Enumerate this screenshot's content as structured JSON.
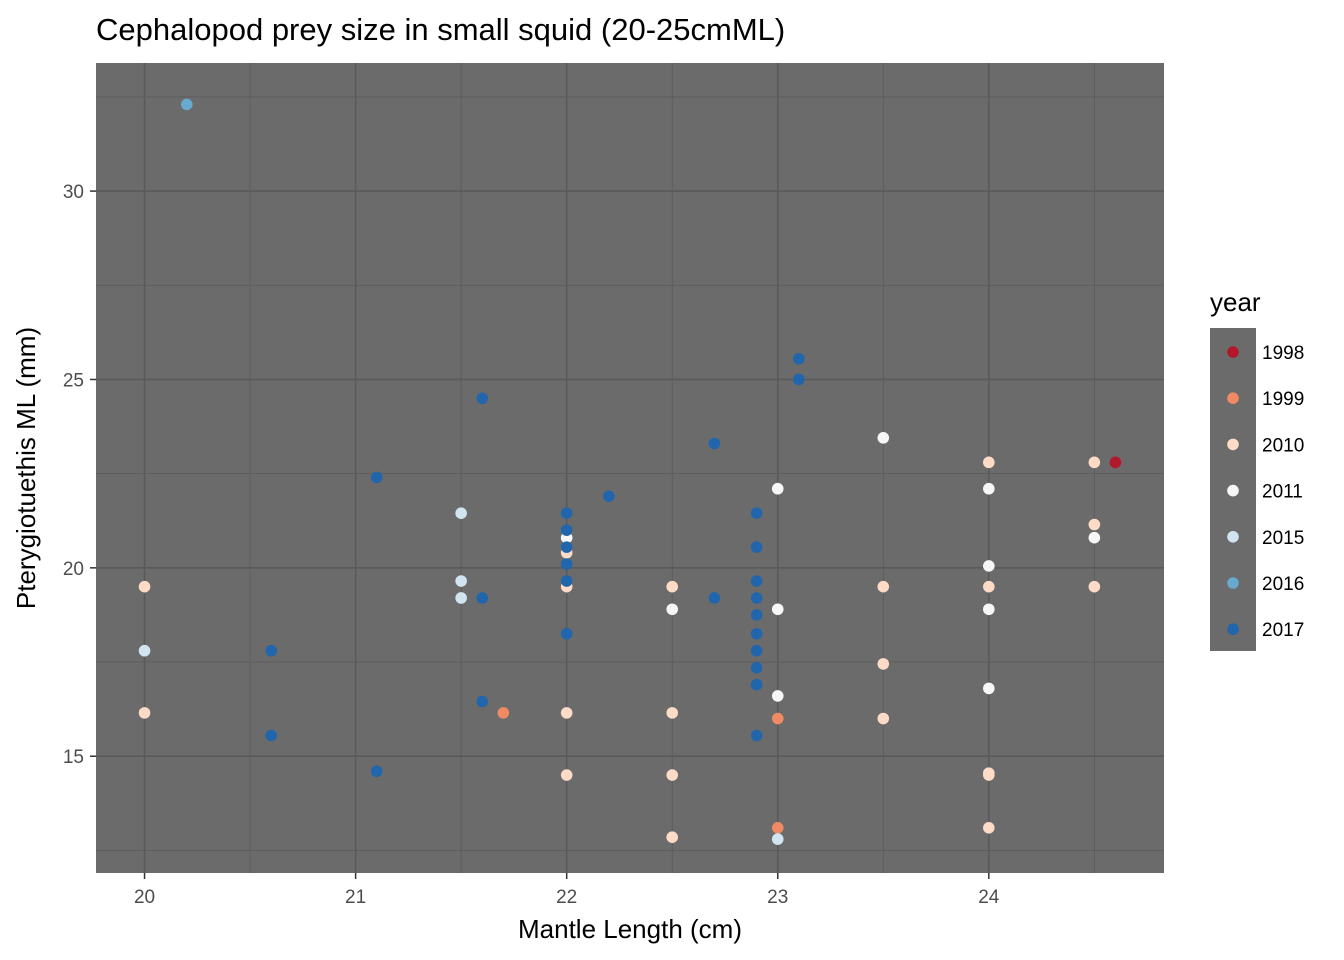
{
  "chart_data": {
    "type": "scatter",
    "title": "Cephalopod prey size in small squid (20-25cmML)",
    "xlabel": "Mantle Length (cm)",
    "ylabel": "Pterygiotuethis ML (mm)",
    "xlim": [
      19.77,
      24.83
    ],
    "ylim": [
      11.9,
      33.4
    ],
    "x_ticks": [
      20,
      21,
      22,
      23,
      24
    ],
    "y_ticks": [
      15,
      20,
      25,
      30
    ],
    "x_tick_labels": [
      "20",
      "21",
      "22",
      "23",
      "24"
    ],
    "y_tick_labels": [
      "15",
      "20",
      "25",
      "30"
    ],
    "grid": true,
    "panel_background": "#6b6b6b",
    "grid_color": "#5a5a5a",
    "legend": {
      "title": "year",
      "position": "right",
      "background": "#6b6b6b"
    },
    "series": [
      {
        "name": "1998",
        "color": "#b2182b",
        "points": [
          [
            24.6,
            22.8
          ]
        ]
      },
      {
        "name": "1999",
        "color": "#ef8a62",
        "points": [
          [
            21.7,
            16.15
          ],
          [
            23.0,
            16.0
          ],
          [
            23.0,
            13.1
          ]
        ]
      },
      {
        "name": "2010",
        "color": "#fddbc7",
        "points": [
          [
            20.0,
            19.5
          ],
          [
            20.0,
            16.15
          ],
          [
            22.0,
            19.5
          ],
          [
            22.0,
            20.4
          ],
          [
            22.0,
            16.15
          ],
          [
            22.0,
            14.5
          ],
          [
            22.5,
            19.5
          ],
          [
            22.5,
            16.15
          ],
          [
            22.5,
            14.5
          ],
          [
            22.5,
            12.85
          ],
          [
            23.5,
            19.5
          ],
          [
            23.5,
            17.45
          ],
          [
            23.5,
            16.0
          ],
          [
            24.0,
            22.8
          ],
          [
            24.0,
            19.5
          ],
          [
            24.0,
            14.5
          ],
          [
            24.0,
            14.55
          ],
          [
            24.0,
            13.1
          ],
          [
            24.5,
            22.8
          ],
          [
            24.5,
            21.15
          ],
          [
            24.5,
            19.5
          ]
        ]
      },
      {
        "name": "2011",
        "color": "#f7f7f7",
        "points": [
          [
            22.0,
            20.8
          ],
          [
            22.5,
            18.9
          ],
          [
            23.0,
            22.1
          ],
          [
            23.0,
            18.9
          ],
          [
            23.0,
            16.6
          ],
          [
            23.5,
            23.45
          ],
          [
            24.0,
            22.1
          ],
          [
            24.0,
            20.05
          ],
          [
            24.0,
            18.9
          ],
          [
            24.0,
            16.8
          ],
          [
            24.5,
            20.8
          ]
        ]
      },
      {
        "name": "2015",
        "color": "#d1e5f0",
        "points": [
          [
            20.0,
            17.8
          ],
          [
            21.5,
            21.45
          ],
          [
            21.5,
            19.65
          ],
          [
            21.5,
            19.2
          ],
          [
            23.0,
            12.8
          ]
        ]
      },
      {
        "name": "2016",
        "color": "#67a9cf",
        "points": [
          [
            20.2,
            32.3
          ]
        ]
      },
      {
        "name": "2017",
        "color": "#2166ac",
        "points": [
          [
            20.6,
            17.8
          ],
          [
            20.6,
            15.55
          ],
          [
            21.1,
            22.4
          ],
          [
            21.1,
            14.6
          ],
          [
            21.6,
            24.5
          ],
          [
            21.6,
            19.2
          ],
          [
            21.6,
            16.45
          ],
          [
            22.0,
            21.45
          ],
          [
            22.0,
            21.0
          ],
          [
            22.0,
            20.55
          ],
          [
            22.0,
            20.1
          ],
          [
            22.0,
            19.65
          ],
          [
            22.0,
            18.25
          ],
          [
            22.2,
            21.9
          ],
          [
            22.7,
            23.3
          ],
          [
            22.7,
            19.2
          ],
          [
            22.9,
            21.45
          ],
          [
            22.9,
            20.55
          ],
          [
            22.9,
            19.65
          ],
          [
            22.9,
            19.2
          ],
          [
            22.9,
            18.75
          ],
          [
            22.9,
            18.25
          ],
          [
            22.9,
            17.8
          ],
          [
            22.9,
            17.35
          ],
          [
            22.9,
            16.9
          ],
          [
            22.9,
            15.55
          ],
          [
            23.1,
            25.55
          ],
          [
            23.1,
            25.0
          ]
        ]
      }
    ]
  }
}
